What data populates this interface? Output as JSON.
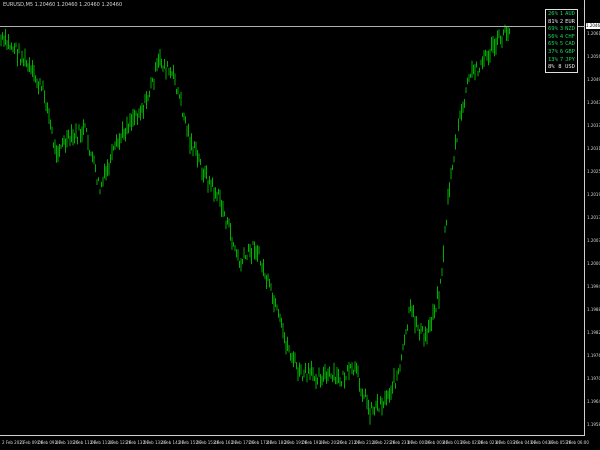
{
  "header": {
    "symbol_info": "EURUSD,M5  1.20460 1.20460 1.20460 1.20460"
  },
  "price_axis": {
    "labels": [
      "1.20615",
      "1.20560",
      "1.20495",
      "1.20435",
      "1.20375",
      "1.20310",
      "1.20250",
      "1.20190",
      "1.20130",
      "1.20070",
      "1.20005",
      "1.19945",
      "1.19885",
      "1.19820",
      "1.19760",
      "1.19700",
      "1.19640",
      "1.19580"
    ]
  },
  "bid_price": "1.20460",
  "time_axis": {
    "labels": [
      "2 Feb 2021",
      "2 Feb 09:00",
      "2 Feb 09:40",
      "2 Feb 10:20",
      "2 Feb 11:00",
      "2 Feb 11:40",
      "2 Feb 12:20",
      "2 Feb 13:00",
      "2 Feb 13:40",
      "2 Feb 14:20",
      "2 Feb 15:00",
      "2 Feb 15:40",
      "2 Feb 16:20",
      "2 Feb 17:00",
      "2 Feb 17:40",
      "2 Feb 18:20",
      "2 Feb 19:00",
      "2 Feb 19:40",
      "2 Feb 20:20",
      "2 Feb 21:00",
      "2 Feb 21:40",
      "2 Feb 22:20",
      "2 Feb 23:00",
      "3 Feb 00:00",
      "3 Feb 00:40",
      "3 Feb 01:20",
      "3 Feb 02:00",
      "3 Feb 02:40",
      "3 Feb 03:20",
      "3 Feb 04:00",
      "3 Feb 04:40",
      "3 Feb 05:20",
      "3 Feb 06:00"
    ]
  },
  "strength_meter": {
    "rows": [
      {
        "pct": "26%",
        "rank": "1",
        "currency": "AUD",
        "color": "#1bd15e"
      },
      {
        "pct": "81%",
        "rank": "2",
        "currency": "EUR",
        "color": "#e6e6e6"
      },
      {
        "pct": "69%",
        "rank": "3",
        "currency": "NZD",
        "color": "#1bd15e"
      },
      {
        "pct": "56%",
        "rank": "4",
        "currency": "CHF",
        "color": "#1bd15e"
      },
      {
        "pct": "65%",
        "rank": "5",
        "currency": "CAD",
        "color": "#1bd15e"
      },
      {
        "pct": "37%",
        "rank": "6",
        "currency": "GBP",
        "color": "#1bd15e"
      },
      {
        "pct": "13%",
        "rank": "7",
        "currency": "JPY",
        "color": "#1bd15e"
      },
      {
        "pct": "8%",
        "rank": "8",
        "currency": "USD",
        "color": "#e6e6e6"
      }
    ]
  },
  "colors": {
    "bars": "#00c000",
    "background": "#000000",
    "grid_text": "#d8d8d8"
  }
}
